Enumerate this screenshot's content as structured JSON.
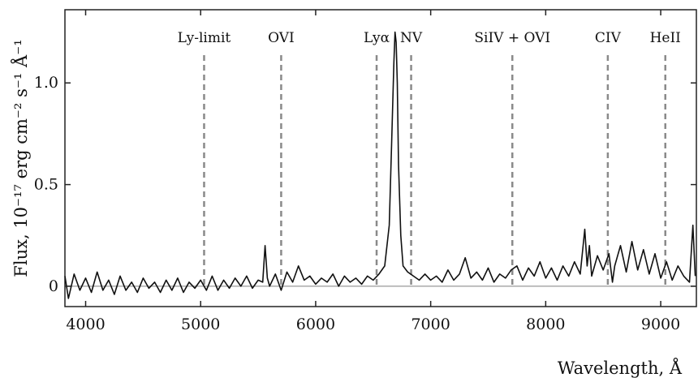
{
  "chart_data": {
    "type": "line",
    "xlabel": "Wavelength, Å",
    "ylabel": "Flux, 10⁻¹⁷ erg cm⁻² s⁻¹ Å⁻¹",
    "xlim": [
      3820,
      9310
    ],
    "ylim": [
      -0.1,
      1.36
    ],
    "xticks": [
      {
        "value": 4000,
        "label": "4000"
      },
      {
        "value": 5000,
        "label": "5000"
      },
      {
        "value": 6000,
        "label": "6000"
      },
      {
        "value": 7000,
        "label": "7000"
      },
      {
        "value": 8000,
        "label": "8000"
      },
      {
        "value": 9000,
        "label": "9000"
      }
    ],
    "yticks": [
      {
        "value": 0,
        "label": "0"
      },
      {
        "value": 0.5,
        "label": "0.5"
      },
      {
        "value": 1.0,
        "label": "1.0"
      }
    ],
    "zero_line": 0,
    "series": [
      {
        "color": "#111111",
        "x": [
          3820,
          3850,
          3900,
          3950,
          4000,
          4050,
          4100,
          4150,
          4200,
          4250,
          4300,
          4350,
          4400,
          4450,
          4500,
          4550,
          4600,
          4650,
          4700,
          4750,
          4800,
          4850,
          4900,
          4950,
          5000,
          5050,
          5100,
          5150,
          5200,
          5250,
          5300,
          5350,
          5400,
          5450,
          5500,
          5540,
          5560,
          5580,
          5600,
          5650,
          5700,
          5750,
          5800,
          5850,
          5900,
          5950,
          6000,
          6050,
          6100,
          6150,
          6200,
          6250,
          6300,
          6350,
          6400,
          6450,
          6500,
          6550,
          6600,
          6640,
          6660,
          6680,
          6690,
          6700,
          6710,
          6720,
          6740,
          6760,
          6800,
          6850,
          6900,
          6950,
          7000,
          7050,
          7100,
          7150,
          7200,
          7250,
          7300,
          7350,
          7400,
          7450,
          7500,
          7550,
          7600,
          7650,
          7700,
          7750,
          7800,
          7850,
          7900,
          7950,
          8000,
          8050,
          8100,
          8150,
          8200,
          8250,
          8300,
          8340,
          8360,
          8380,
          8400,
          8450,
          8500,
          8550,
          8580,
          8600,
          8650,
          8700,
          8750,
          8800,
          8850,
          8900,
          8950,
          9000,
          9050,
          9100,
          9150,
          9200,
          9250,
          9280,
          9300
        ],
        "y": [
          0.05,
          -0.06,
          0.06,
          -0.02,
          0.04,
          -0.03,
          0.07,
          -0.02,
          0.03,
          -0.04,
          0.05,
          -0.02,
          0.02,
          -0.03,
          0.04,
          -0.01,
          0.02,
          -0.03,
          0.03,
          -0.02,
          0.04,
          -0.03,
          0.02,
          -0.01,
          0.03,
          -0.02,
          0.05,
          -0.02,
          0.03,
          -0.01,
          0.04,
          0.0,
          0.05,
          -0.01,
          0.03,
          0.02,
          0.2,
          0.04,
          0.0,
          0.06,
          -0.02,
          0.07,
          0.02,
          0.1,
          0.03,
          0.05,
          0.01,
          0.04,
          0.02,
          0.06,
          0.0,
          0.05,
          0.02,
          0.04,
          0.01,
          0.05,
          0.03,
          0.06,
          0.1,
          0.3,
          0.7,
          1.1,
          1.25,
          1.2,
          1.0,
          0.6,
          0.25,
          0.1,
          0.07,
          0.05,
          0.03,
          0.06,
          0.03,
          0.05,
          0.02,
          0.08,
          0.03,
          0.06,
          0.14,
          0.04,
          0.07,
          0.03,
          0.09,
          0.02,
          0.06,
          0.04,
          0.08,
          0.1,
          0.03,
          0.09,
          0.05,
          0.12,
          0.04,
          0.09,
          0.03,
          0.1,
          0.05,
          0.12,
          0.06,
          0.28,
          0.1,
          0.2,
          0.05,
          0.15,
          0.08,
          0.16,
          0.02,
          0.1,
          0.2,
          0.07,
          0.22,
          0.08,
          0.18,
          0.06,
          0.16,
          0.04,
          0.12,
          0.03,
          0.1,
          0.05,
          0.02,
          0.3,
          0.05
        ],
        "ticks": [
          {
            "value": 4000,
            "label": "4000"
          }
        ]
      }
    ],
    "annotations": [
      {
        "label": "Ly-limit",
        "x": 5030
      },
      {
        "label": "OVI",
        "x": 5700
      },
      {
        "label": "Lyα",
        "x": 6530
      },
      {
        "label": "NV",
        "x": 6830
      },
      {
        "label": "SiIV + OVI",
        "x": 7710
      },
      {
        "label": "CIV",
        "x": 8540
      },
      {
        "label": "HeII",
        "x": 9040
      }
    ]
  }
}
